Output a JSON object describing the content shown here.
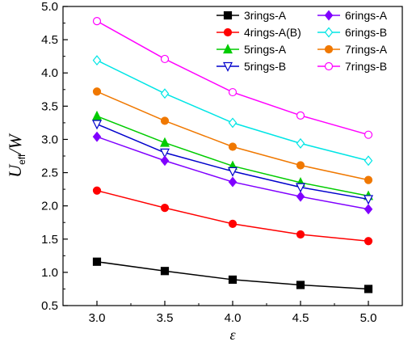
{
  "chart_data": {
    "type": "line",
    "title": "",
    "xlabel": "ε",
    "ylabel": {
      "main": "U",
      "sub": "eff",
      "rest": "/W"
    },
    "x": [
      3.0,
      3.5,
      4.0,
      4.5,
      5.0
    ],
    "xlim": [
      2.75,
      5.25
    ],
    "ylim": [
      0.5,
      5.0
    ],
    "xticks": [
      "3.0",
      "3.5",
      "4.0",
      "4.5",
      "5.0"
    ],
    "yticks": [
      "0.5",
      "1.0",
      "1.5",
      "2.0",
      "2.5",
      "3.0",
      "3.5",
      "4.0",
      "4.5",
      "5.0"
    ],
    "grid": false,
    "legend_position": "top-right",
    "series": [
      {
        "name": "3rings-A",
        "color": "#000000",
        "marker": "square",
        "filled": true,
        "values": [
          1.16,
          1.02,
          0.89,
          0.81,
          0.75
        ]
      },
      {
        "name": "4rings-A(B)",
        "color": "#ff0000",
        "marker": "circle",
        "filled": true,
        "values": [
          2.23,
          1.97,
          1.73,
          1.57,
          1.47
        ]
      },
      {
        "name": "5rings-A",
        "color": "#00cc00",
        "marker": "triangle-up",
        "filled": true,
        "values": [
          3.35,
          2.95,
          2.6,
          2.35,
          2.15
        ]
      },
      {
        "name": "5rings-B",
        "color": "#0000cc",
        "marker": "triangle-down",
        "filled": false,
        "values": [
          3.23,
          2.8,
          2.52,
          2.28,
          2.1
        ]
      },
      {
        "name": "6rings-A",
        "color": "#8000ff",
        "marker": "diamond",
        "filled": true,
        "values": [
          3.04,
          2.68,
          2.36,
          2.14,
          1.95
        ]
      },
      {
        "name": "6rings-B",
        "color": "#00e5e5",
        "marker": "diamond",
        "filled": false,
        "values": [
          4.19,
          3.69,
          3.25,
          2.94,
          2.68
        ]
      },
      {
        "name": "7rings-A",
        "color": "#f07800",
        "marker": "circle",
        "filled": true,
        "values": [
          3.72,
          3.28,
          2.89,
          2.61,
          2.39
        ]
      },
      {
        "name": "7rings-B",
        "color": "#ff00ff",
        "marker": "circle",
        "filled": false,
        "values": [
          4.78,
          4.21,
          3.71,
          3.36,
          3.07
        ]
      }
    ]
  }
}
